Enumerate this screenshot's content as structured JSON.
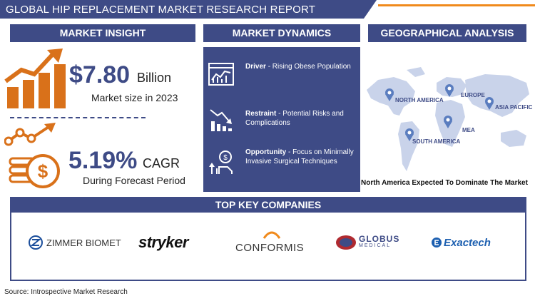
{
  "title": "GLOBAL HIP REPLACEMENT MARKET RESEARCH REPORT",
  "sections": {
    "insight": "MARKET INSIGHT",
    "dynamics": "MARKET DYNAMICS",
    "geo": "GEOGRAPHICAL ANALYSIS",
    "companies": "TOP KEY COMPANIES"
  },
  "insight": {
    "market_value": "$7.80",
    "market_unit": "Billion",
    "market_caption": "Market size in 2023",
    "cagr_value": "5.19%",
    "cagr_unit": "CAGR",
    "cagr_caption": "During Forecast Period"
  },
  "dynamics": [
    {
      "label": "Driver",
      "text": "- Rising Obese Population",
      "icon": "chart-screen-icon"
    },
    {
      "label": "Restraint",
      "text": "- Potential Risks and Complications",
      "icon": "declining-bars-icon"
    },
    {
      "label": "Opportunity",
      "text": "- Focus on Minimally Invasive Surgical Techniques",
      "icon": "growth-hand-icon"
    }
  ],
  "geo": {
    "regions": [
      "NORTH AMERICA",
      "EUROPE",
      "ASIA PACIFIC",
      "MEA",
      "SOUTH AMERICA"
    ],
    "caption": "North America Expected To Dominate The Market"
  },
  "companies": [
    "ZIMMER BIOMET",
    "stryker",
    "CONFORMIS",
    "GLOBUS",
    "MEDICAL",
    "Exactech"
  ],
  "source": "Source: Introspective Market Research",
  "colors": {
    "navy": "#3e4b86",
    "orange": "#f08a1c",
    "map": "#c9d3ea"
  }
}
